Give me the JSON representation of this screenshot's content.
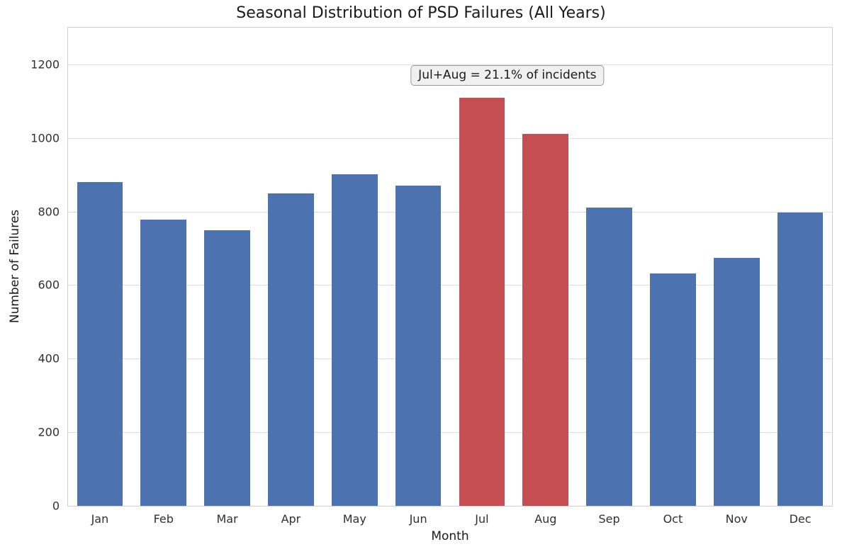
{
  "chart_data": {
    "type": "bar",
    "title": "Seasonal Distribution of PSD Failures (All Years)",
    "xlabel": "Month",
    "ylabel": "Number of Failures",
    "categories": [
      "Jan",
      "Feb",
      "Mar",
      "Apr",
      "May",
      "Jun",
      "Jul",
      "Aug",
      "Sep",
      "Oct",
      "Nov",
      "Dec"
    ],
    "values": [
      880,
      778,
      750,
      850,
      902,
      870,
      1110,
      1012,
      810,
      632,
      675,
      798
    ],
    "yticks": [
      0,
      200,
      400,
      600,
      800,
      1000,
      1200
    ],
    "ylim": [
      0,
      1300
    ],
    "bar_color": "#4C72B0",
    "highlight_color": "#C44E52",
    "highlight_months": [
      "Jul",
      "Aug"
    ],
    "annotation": "Jul+Aug = 21.1% of incidents",
    "grid": "horizontal",
    "legend": "none"
  }
}
